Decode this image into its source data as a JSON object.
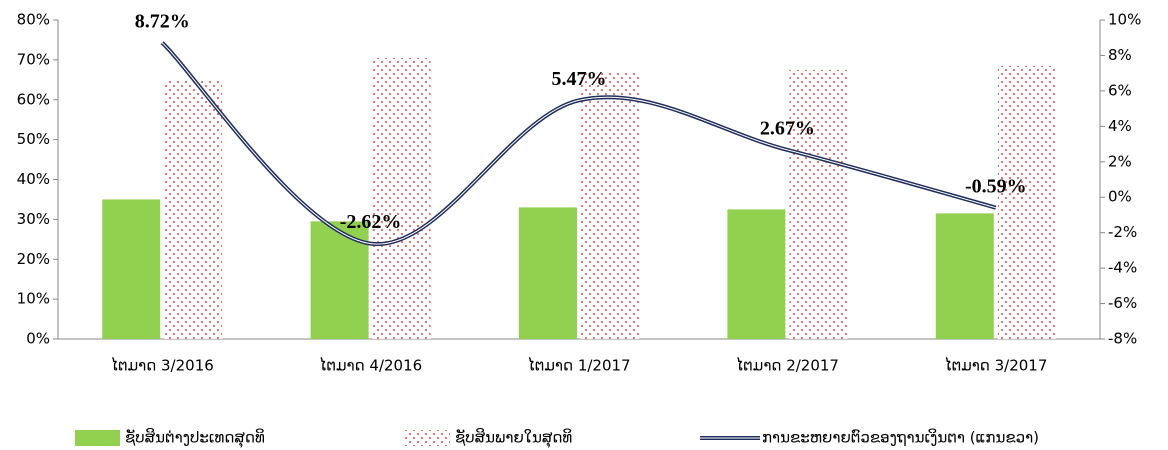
{
  "chart_data": {
    "type": "bar",
    "categories": [
      "ໄຕມາດ 3/2016",
      "ໄຕມາດ 4/2016",
      "ໄຕມາດ 1/2017",
      "ໄຕມາດ 2/2017",
      "ໄຕມາດ 3/2017"
    ],
    "series": [
      {
        "name": "ຊັບສິນຕ່າງປະເທດສຸດທິ",
        "color": "#92d050",
        "values": [
          35,
          29.5,
          33,
          32.5,
          31.5
        ]
      },
      {
        "name": "ຊັບສິນພາຍໃນສຸດທິ",
        "color": "#e06666",
        "values": [
          65,
          70.5,
          67,
          67.5,
          68.5
        ]
      },
      {
        "name": "ການຂະຫຍາຍຕົວຂອງຖານເງິນຕາ (ແກນຂວາ)",
        "color": "#1f2d5c",
        "axis": "y2",
        "type": "line",
        "values": [
          8.72,
          -2.62,
          5.47,
          2.67,
          -0.59
        ],
        "value_labels": [
          "8.72%",
          "-2.62%",
          "5.47%",
          "2.67%",
          "-0.59%"
        ]
      }
    ],
    "ylim": [
      0,
      80
    ],
    "yticks": [
      {
        "value": 0,
        "label": "0%"
      },
      {
        "value": 10,
        "label": "10%"
      },
      {
        "value": 20,
        "label": "20%"
      },
      {
        "value": 30,
        "label": "30%"
      },
      {
        "value": 40,
        "label": "40%"
      },
      {
        "value": 50,
        "label": "50%"
      },
      {
        "value": 60,
        "label": "60%"
      },
      {
        "value": 70,
        "label": "70%"
      },
      {
        "value": 80,
        "label": "80%"
      }
    ],
    "y2lim": [
      -8,
      10
    ],
    "y2ticks": [
      {
        "value": -8,
        "label": "-8%"
      },
      {
        "value": -6,
        "label": "-6%"
      },
      {
        "value": -4,
        "label": "-4%"
      },
      {
        "value": -2,
        "label": "-2%"
      },
      {
        "value": 0,
        "label": "0%"
      },
      {
        "value": 2,
        "label": "2%"
      },
      {
        "value": 4,
        "label": "4%"
      },
      {
        "value": 6,
        "label": "6%"
      },
      {
        "value": 8,
        "label": "8%"
      },
      {
        "value": 10,
        "label": "10%"
      }
    ],
    "grid": false,
    "legend": "bottom"
  }
}
